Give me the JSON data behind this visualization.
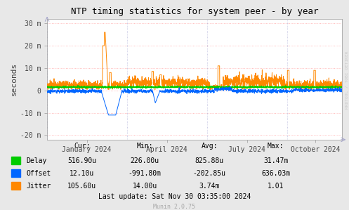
{
  "title": "NTP timing statistics for system peer - by year",
  "ylabel": "seconds",
  "bg_color": "#e8e8e8",
  "plot_bg_color": "#ffffff",
  "grid_color_h": "#ffaaaa",
  "grid_color_v": "#bbbbdd",
  "yticks": [
    -20,
    -10,
    0,
    10,
    20,
    30
  ],
  "ytick_labels": [
    "-20 m",
    "-10 m",
    "0",
    "10 m",
    "20 m",
    "30 m"
  ],
  "ylim": [
    -22,
    32
  ],
  "xtick_pos": [
    45,
    136,
    227,
    305
  ],
  "xtick_labels": [
    "January 2024",
    "April 2024",
    "July 2024",
    "October 2024"
  ],
  "vgrid_pos": [
    0,
    91,
    182,
    273,
    335
  ],
  "delay_color": "#00cc00",
  "offset_color": "#0066ff",
  "jitter_color": "#ff8800",
  "stats_header": [
    "Cur:",
    "Min:",
    "Avg:",
    "Max:"
  ],
  "delay_stats": [
    "516.90u",
    "226.00u",
    "825.88u",
    "31.47m"
  ],
  "offset_stats": [
    "12.10u",
    "-991.80m",
    "-202.85u",
    "636.03m"
  ],
  "jitter_stats": [
    "105.60u",
    "14.00u",
    "3.74m",
    "1.01"
  ],
  "last_update": "Last update: Sat Nov 30 03:35:00 2024",
  "munin_version": "Munin 2.0.75",
  "rrdtool_label": "RRDTOOL / TOBI OETIKER"
}
